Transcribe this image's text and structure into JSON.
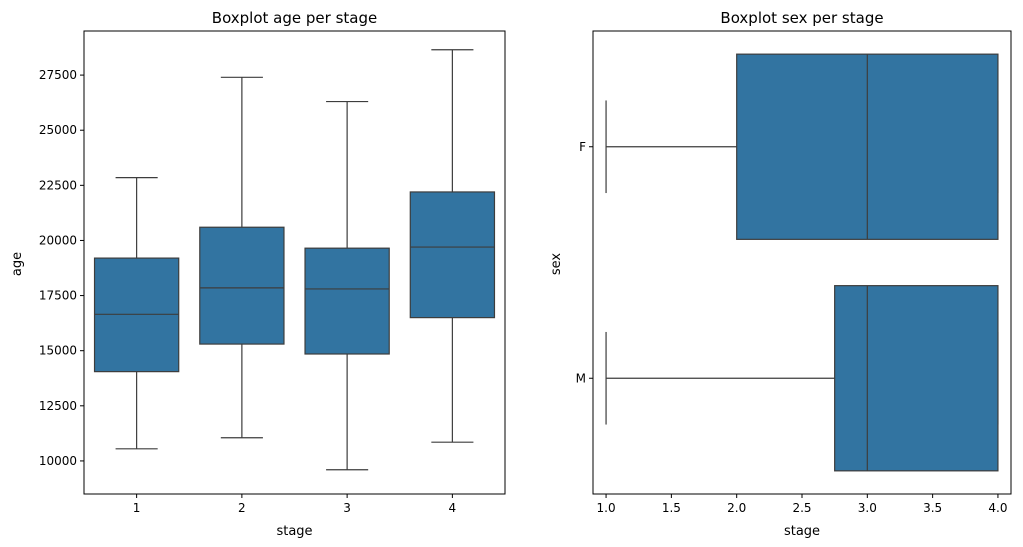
{
  "chart_data": [
    {
      "type": "boxplot",
      "orientation": "vertical",
      "title": "Boxplot age per stage",
      "xlabel": "stage",
      "ylabel": "age",
      "ylim": [
        8500,
        29500
      ],
      "yticks": [
        10000,
        12500,
        15000,
        17500,
        20000,
        22500,
        25000,
        27500
      ],
      "ytick_labels": [
        "10000",
        "12500",
        "15000",
        "17500",
        "20000",
        "22500",
        "25000",
        "27500"
      ],
      "categories": [
        "1",
        "2",
        "3",
        "4"
      ],
      "color": "#3274a1",
      "boxes": [
        {
          "category": "1",
          "whislo": 10550,
          "q1": 14050,
          "med": 16650,
          "q3": 19200,
          "whishi": 22850
        },
        {
          "category": "2",
          "whislo": 11050,
          "q1": 15300,
          "med": 17850,
          "q3": 20600,
          "whishi": 27400
        },
        {
          "category": "3",
          "whislo": 9600,
          "q1": 14850,
          "med": 17800,
          "q3": 19650,
          "whishi": 26300
        },
        {
          "category": "4",
          "whislo": 10850,
          "q1": 16500,
          "med": 19700,
          "q3": 22200,
          "whishi": 28650
        }
      ]
    },
    {
      "type": "boxplot",
      "orientation": "horizontal",
      "title": "Boxplot sex per stage",
      "xlabel": "stage",
      "ylabel": "sex",
      "xlim": [
        0.9,
        4.1
      ],
      "xticks": [
        1.0,
        1.5,
        2.0,
        2.5,
        3.0,
        3.5,
        4.0
      ],
      "xtick_labels": [
        "1.0",
        "1.5",
        "2.0",
        "2.5",
        "3.0",
        "3.5",
        "4.0"
      ],
      "categories": [
        "F",
        "M"
      ],
      "color": "#3274a1",
      "boxes": [
        {
          "category": "F",
          "whislo": 1.0,
          "q1": 2.0,
          "med": 3.0,
          "q3": 4.0,
          "whishi": 4.0
        },
        {
          "category": "M",
          "whislo": 1.0,
          "q1": 2.75,
          "med": 3.0,
          "q3": 4.0,
          "whishi": 4.0
        }
      ]
    }
  ]
}
